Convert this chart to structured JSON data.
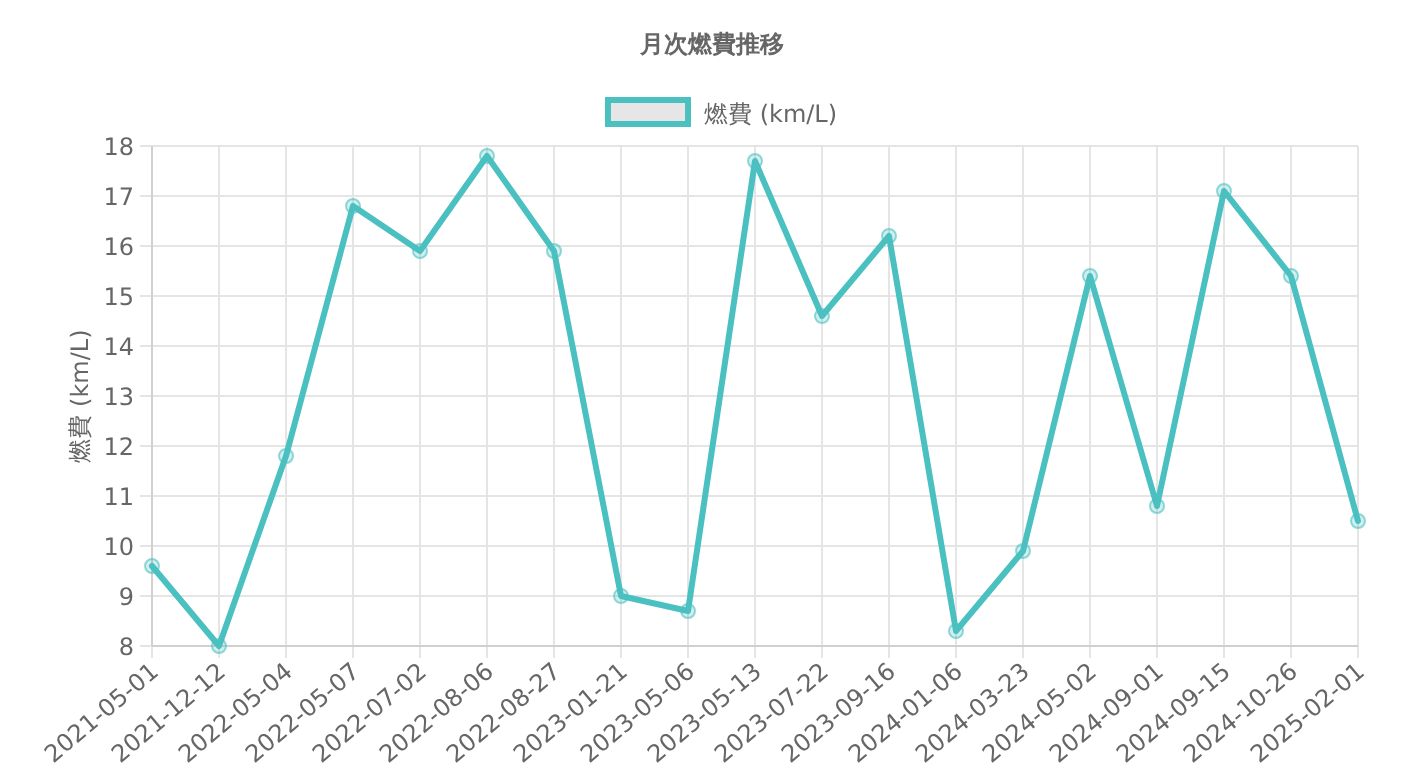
{
  "chart_data": {
    "type": "line",
    "title": "月次燃費推移",
    "ylabel": "燃費 (km/L)",
    "categories": [
      "2021-05-01",
      "2021-12-12",
      "2022-05-04",
      "2022-05-07",
      "2022-07-02",
      "2022-08-06",
      "2022-08-27",
      "2023-01-21",
      "2023-05-06",
      "2023-05-13",
      "2023-07-22",
      "2023-09-16",
      "2024-01-06",
      "2024-03-23",
      "2024-05-02",
      "2024-09-01",
      "2024-09-15",
      "2024-10-26",
      "2025-02-01"
    ],
    "series": [
      {
        "name": "燃費 (km/L)",
        "color": "#4bc0c0",
        "values": [
          9.6,
          8.0,
          11.8,
          16.8,
          15.9,
          17.8,
          15.9,
          9.0,
          8.7,
          17.7,
          14.6,
          16.2,
          8.3,
          9.9,
          15.4,
          10.8,
          17.1,
          15.4,
          10.5
        ]
      }
    ],
    "ylim": [
      8,
      18
    ],
    "yticks": [
      8,
      9,
      10,
      11,
      12,
      13,
      14,
      15,
      16,
      17,
      18
    ],
    "grid": true,
    "legend": "top",
    "marker": "circle",
    "line_style": "solid"
  }
}
